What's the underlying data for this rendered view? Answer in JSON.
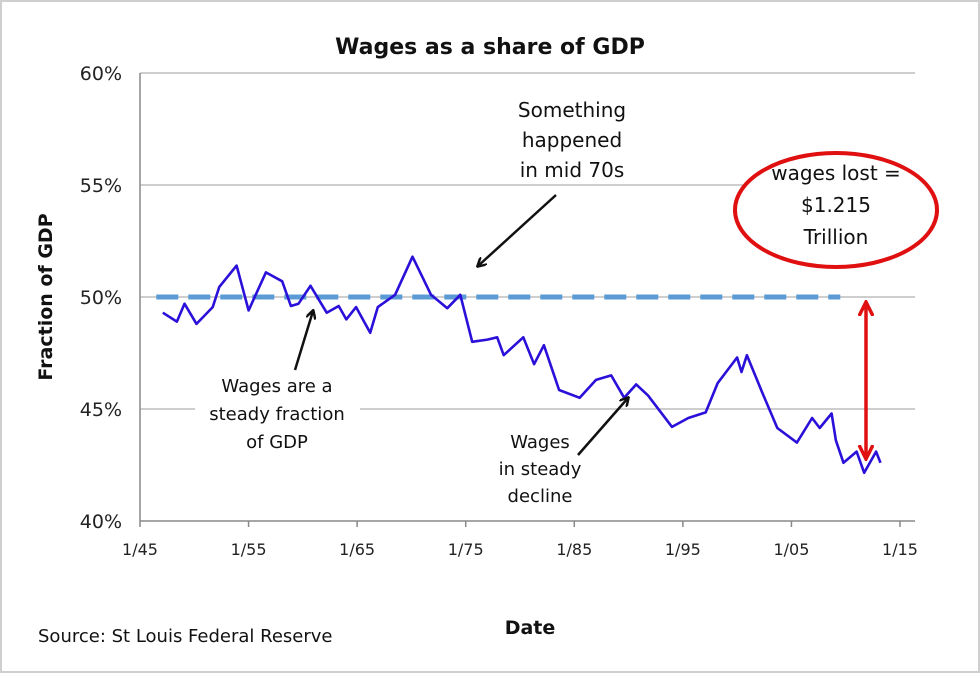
{
  "chart_data": {
    "type": "line",
    "title": "Wages as a share of GDP",
    "xlabel": "Date",
    "ylabel": "Fraction of GDP",
    "source": "Source: St Louis Federal Reserve",
    "xlim": [
      1945,
      2015
    ],
    "ylim": [
      40,
      60
    ],
    "grid": true,
    "y_ticks": [
      60,
      55,
      50,
      45,
      40
    ],
    "y_tick_labels": [
      "60%",
      "55%",
      "50%",
      "45%",
      "40%"
    ],
    "x_ticks": [
      1945,
      1955,
      1965,
      1975,
      1985,
      1995,
      2005,
      2015
    ],
    "x_tick_labels": [
      "1/45",
      "1/55",
      "1/65",
      "1/75",
      "1/85",
      "1/95",
      "1/05",
      "1/15"
    ],
    "series": [
      {
        "color": "#2a10d8",
        "x": [
          1947.1,
          1948.4,
          1949.1,
          1950.2,
          1951.7,
          1952.3,
          1953.9,
          1955.0,
          1956.6,
          1958.1,
          1958.9,
          1959.6,
          1960.7,
          1962.2,
          1963.3,
          1964.0,
          1964.9,
          1966.2,
          1966.9,
          1968.5,
          1970.1,
          1971.0,
          1971.8,
          1973.3,
          1974.5,
          1975.6,
          1977.0,
          1977.9,
          1978.5,
          1980.3,
          1981.3,
          1982.2,
          1983.6,
          1985.5,
          1987.0,
          1988.4,
          1989.6,
          1990.7,
          1991.8,
          1994.0,
          1995.5,
          1997.1,
          1998.2,
          2000.0,
          2000.4,
          2000.9,
          2002.3,
          2003.7,
          2005.5,
          2006.9,
          2007.6,
          2008.7,
          2009.1,
          2009.8,
          2011.0,
          2011.7,
          2012.8,
          2013.2
        ],
        "y": [
          49.3,
          48.9,
          49.7,
          48.8,
          49.55,
          50.45,
          51.4,
          49.4,
          51.1,
          50.7,
          49.6,
          49.7,
          50.5,
          49.3,
          49.6,
          49.0,
          49.55,
          48.4,
          49.55,
          50.1,
          51.8,
          50.9,
          50.1,
          49.5,
          50.1,
          48.0,
          48.1,
          48.2,
          47.4,
          48.2,
          47.0,
          47.85,
          45.85,
          45.5,
          46.3,
          46.5,
          45.5,
          46.1,
          45.6,
          44.2,
          44.6,
          44.85,
          46.15,
          47.3,
          46.65,
          47.4,
          45.75,
          44.15,
          43.5,
          44.6,
          44.15,
          44.8,
          43.6,
          42.6,
          43.1,
          42.15,
          43.1,
          42.6
        ]
      }
    ],
    "reference_line": {
      "y": 50,
      "color": "#5b9bd5",
      "style": "dashed"
    },
    "annotations": {
      "mid70s": [
        "Something",
        "happened",
        "in mid 70s"
      ],
      "steady": [
        "Wages are a",
        "steady fraction",
        "of GDP"
      ],
      "decline": [
        "Wages",
        "in steady",
        "decline"
      ],
      "lost": [
        "wages lost =",
        "$1.215",
        "Trillion"
      ],
      "highlight_color": "#e01010"
    }
  }
}
